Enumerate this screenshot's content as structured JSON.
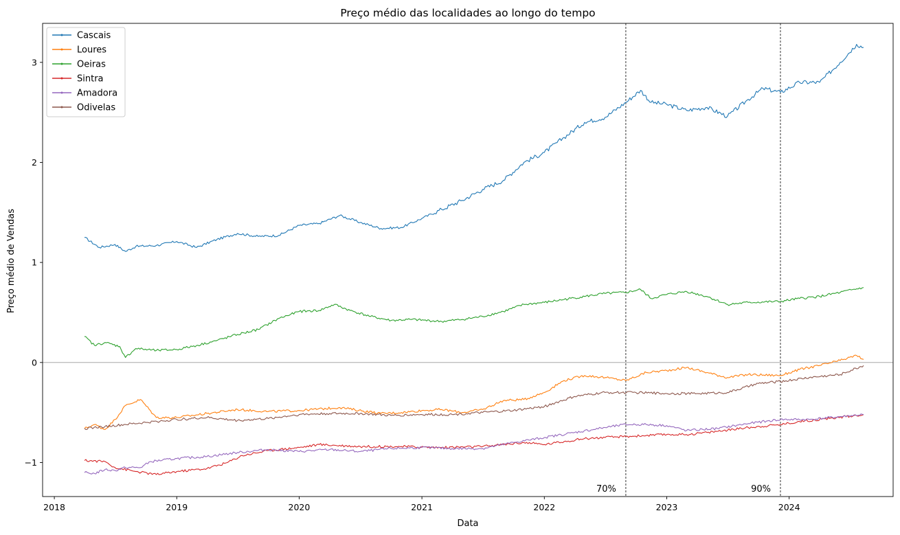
{
  "chart_data": {
    "type": "line",
    "title": "Preço médio das localidades ao longo do tempo",
    "xlabel": "Data",
    "ylabel": "Preço médio de Vendas",
    "xlim": [
      "2017-11-27",
      "2024-11-06"
    ],
    "ylim": [
      -1.34,
      3.39
    ],
    "x_ticks": [
      "2018",
      "2019",
      "2020",
      "2021",
      "2022",
      "2023",
      "2024"
    ],
    "y_ticks": [
      -1,
      0,
      1,
      2,
      3
    ],
    "grid": false,
    "legend_position": "upper-left",
    "reference_lines": {
      "horizontal": [
        {
          "y": 0,
          "color": "#999999"
        }
      ],
      "vertical": [
        {
          "x": "2022-09-01",
          "label": "70%"
        },
        {
          "x": "2023-12-06",
          "label": "90%"
        }
      ]
    },
    "series": [
      {
        "name": "Cascais",
        "color": "#1f77b4",
        "points": [
          [
            "2018-04-01",
            1.25
          ],
          [
            "2018-05-15",
            1.15
          ],
          [
            "2018-07-01",
            1.18
          ],
          [
            "2018-08-01",
            1.11
          ],
          [
            "2018-09-01",
            1.16
          ],
          [
            "2018-11-01",
            1.17
          ],
          [
            "2019-01-01",
            1.21
          ],
          [
            "2019-03-01",
            1.15
          ],
          [
            "2019-05-01",
            1.23
          ],
          [
            "2019-07-01",
            1.29
          ],
          [
            "2019-09-01",
            1.26
          ],
          [
            "2019-11-01",
            1.27
          ],
          [
            "2020-01-01",
            1.37
          ],
          [
            "2020-03-01",
            1.39
          ],
          [
            "2020-05-01",
            1.47
          ],
          [
            "2020-07-01",
            1.4
          ],
          [
            "2020-09-01",
            1.34
          ],
          [
            "2020-11-01",
            1.35
          ],
          [
            "2021-01-01",
            1.44
          ],
          [
            "2021-03-01",
            1.53
          ],
          [
            "2021-05-01",
            1.62
          ],
          [
            "2021-07-01",
            1.73
          ],
          [
            "2021-09-01",
            1.82
          ],
          [
            "2021-11-01",
            2.0
          ],
          [
            "2022-01-01",
            2.1
          ],
          [
            "2022-03-01",
            2.25
          ],
          [
            "2022-05-01",
            2.4
          ],
          [
            "2022-07-01",
            2.45
          ],
          [
            "2022-09-01",
            2.6
          ],
          [
            "2022-10-15",
            2.72
          ],
          [
            "2022-11-15",
            2.6
          ],
          [
            "2023-01-01",
            2.58
          ],
          [
            "2023-03-01",
            2.52
          ],
          [
            "2023-05-01",
            2.55
          ],
          [
            "2023-07-01",
            2.46
          ],
          [
            "2023-09-01",
            2.63
          ],
          [
            "2023-10-15",
            2.74
          ],
          [
            "2023-12-06",
            2.7
          ],
          [
            "2024-02-01",
            2.8
          ],
          [
            "2024-04-01",
            2.8
          ],
          [
            "2024-06-01",
            3.0
          ],
          [
            "2024-07-20",
            3.18
          ],
          [
            "2024-08-10",
            3.15
          ]
        ]
      },
      {
        "name": "Loures",
        "color": "#ff7f0e",
        "points": [
          [
            "2018-04-01",
            -0.66
          ],
          [
            "2018-05-01",
            -0.62
          ],
          [
            "2018-06-01",
            -0.67
          ],
          [
            "2018-07-01",
            -0.57
          ],
          [
            "2018-08-01",
            -0.43
          ],
          [
            "2018-09-15",
            -0.37
          ],
          [
            "2018-11-01",
            -0.55
          ],
          [
            "2019-01-01",
            -0.55
          ],
          [
            "2019-04-01",
            -0.51
          ],
          [
            "2019-07-01",
            -0.47
          ],
          [
            "2019-10-01",
            -0.49
          ],
          [
            "2020-01-01",
            -0.48
          ],
          [
            "2020-05-01",
            -0.45
          ],
          [
            "2020-09-01",
            -0.51
          ],
          [
            "2020-11-01",
            -0.5
          ],
          [
            "2021-01-01",
            -0.48
          ],
          [
            "2021-03-01",
            -0.47
          ],
          [
            "2021-05-01",
            -0.5
          ],
          [
            "2021-07-01",
            -0.47
          ],
          [
            "2021-09-01",
            -0.38
          ],
          [
            "2021-11-01",
            -0.37
          ],
          [
            "2022-01-01",
            -0.3
          ],
          [
            "2022-03-01",
            -0.18
          ],
          [
            "2022-05-01",
            -0.13
          ],
          [
            "2022-07-01",
            -0.15
          ],
          [
            "2022-09-01",
            -0.18
          ],
          [
            "2022-11-01",
            -0.1
          ],
          [
            "2023-01-01",
            -0.08
          ],
          [
            "2023-03-01",
            -0.05
          ],
          [
            "2023-05-01",
            -0.1
          ],
          [
            "2023-07-01",
            -0.15
          ],
          [
            "2023-09-01",
            -0.12
          ],
          [
            "2023-12-06",
            -0.13
          ],
          [
            "2024-02-01",
            -0.07
          ],
          [
            "2024-04-01",
            -0.03
          ],
          [
            "2024-06-01",
            0.02
          ],
          [
            "2024-07-20",
            0.07
          ],
          [
            "2024-08-10",
            0.03
          ]
        ]
      },
      {
        "name": "Oeiras",
        "color": "#2ca02c",
        "points": [
          [
            "2018-04-01",
            0.26
          ],
          [
            "2018-05-01",
            0.17
          ],
          [
            "2018-06-01",
            0.2
          ],
          [
            "2018-07-15",
            0.16
          ],
          [
            "2018-08-01",
            0.05
          ],
          [
            "2018-09-01",
            0.14
          ],
          [
            "2018-11-01",
            0.12
          ],
          [
            "2019-01-01",
            0.13
          ],
          [
            "2019-03-01",
            0.17
          ],
          [
            "2019-05-01",
            0.22
          ],
          [
            "2019-07-01",
            0.28
          ],
          [
            "2019-09-01",
            0.33
          ],
          [
            "2019-11-01",
            0.44
          ],
          [
            "2020-01-01",
            0.51
          ],
          [
            "2020-03-01",
            0.52
          ],
          [
            "2020-04-15",
            0.58
          ],
          [
            "2020-06-01",
            0.52
          ],
          [
            "2020-08-01",
            0.46
          ],
          [
            "2020-10-01",
            0.42
          ],
          [
            "2020-12-01",
            0.43
          ],
          [
            "2021-03-01",
            0.41
          ],
          [
            "2021-05-01",
            0.43
          ],
          [
            "2021-07-01",
            0.46
          ],
          [
            "2021-09-01",
            0.51
          ],
          [
            "2021-11-01",
            0.58
          ],
          [
            "2022-01-01",
            0.6
          ],
          [
            "2022-03-01",
            0.63
          ],
          [
            "2022-05-01",
            0.66
          ],
          [
            "2022-07-01",
            0.69
          ],
          [
            "2022-09-01",
            0.7
          ],
          [
            "2022-10-15",
            0.73
          ],
          [
            "2022-11-15",
            0.64
          ],
          [
            "2023-01-01",
            0.68
          ],
          [
            "2023-03-01",
            0.71
          ],
          [
            "2023-05-01",
            0.66
          ],
          [
            "2023-07-01",
            0.58
          ],
          [
            "2023-09-01",
            0.6
          ],
          [
            "2023-12-06",
            0.61
          ],
          [
            "2024-02-01",
            0.64
          ],
          [
            "2024-04-01",
            0.66
          ],
          [
            "2024-06-01",
            0.7
          ],
          [
            "2024-08-10",
            0.75
          ]
        ]
      },
      {
        "name": "Sintra",
        "color": "#d62728",
        "points": [
          [
            "2018-04-01",
            -0.98
          ],
          [
            "2018-06-01",
            -0.99
          ],
          [
            "2018-07-01",
            -1.05
          ],
          [
            "2018-09-01",
            -1.09
          ],
          [
            "2018-11-01",
            -1.12
          ],
          [
            "2019-01-01",
            -1.09
          ],
          [
            "2019-04-01",
            -1.06
          ],
          [
            "2019-06-01",
            -1.0
          ],
          [
            "2019-07-15",
            -0.93
          ],
          [
            "2019-10-01",
            -0.88
          ],
          [
            "2020-01-01",
            -0.85
          ],
          [
            "2020-03-01",
            -0.82
          ],
          [
            "2020-07-01",
            -0.84
          ],
          [
            "2020-11-01",
            -0.84
          ],
          [
            "2021-03-01",
            -0.85
          ],
          [
            "2021-07-01",
            -0.84
          ],
          [
            "2021-11-01",
            -0.8
          ],
          [
            "2022-01-01",
            -0.82
          ],
          [
            "2022-03-01",
            -0.79
          ],
          [
            "2022-05-01",
            -0.76
          ],
          [
            "2022-07-01",
            -0.75
          ],
          [
            "2022-09-01",
            -0.74
          ],
          [
            "2022-11-01",
            -0.73
          ],
          [
            "2023-01-01",
            -0.72
          ],
          [
            "2023-03-01",
            -0.72
          ],
          [
            "2023-05-01",
            -0.7
          ],
          [
            "2023-09-01",
            -0.65
          ],
          [
            "2023-12-06",
            -0.62
          ],
          [
            "2024-02-01",
            -0.59
          ],
          [
            "2024-05-01",
            -0.56
          ],
          [
            "2024-08-10",
            -0.52
          ]
        ]
      },
      {
        "name": "Amadora",
        "color": "#9467bd",
        "points": [
          [
            "2018-04-01",
            -1.1
          ],
          [
            "2018-05-01",
            -1.11
          ],
          [
            "2018-06-01",
            -1.07
          ],
          [
            "2018-07-01",
            -1.08
          ],
          [
            "2018-08-01",
            -1.05
          ],
          [
            "2018-09-15",
            -1.05
          ],
          [
            "2018-10-15",
            -0.99
          ],
          [
            "2019-01-01",
            -0.96
          ],
          [
            "2019-04-01",
            -0.94
          ],
          [
            "2019-07-01",
            -0.9
          ],
          [
            "2019-10-01",
            -0.87
          ],
          [
            "2020-01-01",
            -0.89
          ],
          [
            "2020-04-01",
            -0.87
          ],
          [
            "2020-07-01",
            -0.89
          ],
          [
            "2020-10-01",
            -0.86
          ],
          [
            "2021-01-01",
            -0.85
          ],
          [
            "2021-04-01",
            -0.86
          ],
          [
            "2021-07-01",
            -0.86
          ],
          [
            "2021-10-01",
            -0.8
          ],
          [
            "2022-01-01",
            -0.75
          ],
          [
            "2022-04-01",
            -0.7
          ],
          [
            "2022-07-01",
            -0.65
          ],
          [
            "2022-09-01",
            -0.62
          ],
          [
            "2022-11-01",
            -0.62
          ],
          [
            "2023-01-01",
            -0.63
          ],
          [
            "2023-03-01",
            -0.68
          ],
          [
            "2023-06-01",
            -0.66
          ],
          [
            "2023-09-01",
            -0.61
          ],
          [
            "2023-12-06",
            -0.57
          ],
          [
            "2024-03-01",
            -0.57
          ],
          [
            "2024-08-10",
            -0.52
          ]
        ]
      },
      {
        "name": "Odivelas",
        "color": "#8c564b",
        "points": [
          [
            "2018-04-01",
            -0.66
          ],
          [
            "2018-06-01",
            -0.64
          ],
          [
            "2018-08-01",
            -0.62
          ],
          [
            "2018-10-01",
            -0.6
          ],
          [
            "2019-01-01",
            -0.57
          ],
          [
            "2019-04-01",
            -0.55
          ],
          [
            "2019-07-01",
            -0.58
          ],
          [
            "2019-10-01",
            -0.56
          ],
          [
            "2020-01-01",
            -0.52
          ],
          [
            "2020-04-01",
            -0.51
          ],
          [
            "2020-07-01",
            -0.51
          ],
          [
            "2020-10-01",
            -0.53
          ],
          [
            "2021-01-01",
            -0.52
          ],
          [
            "2021-04-01",
            -0.52
          ],
          [
            "2021-07-01",
            -0.5
          ],
          [
            "2021-10-01",
            -0.48
          ],
          [
            "2022-01-01",
            -0.44
          ],
          [
            "2022-04-01",
            -0.34
          ],
          [
            "2022-07-01",
            -0.3
          ],
          [
            "2022-10-01",
            -0.3
          ],
          [
            "2023-01-01",
            -0.31
          ],
          [
            "2023-04-01",
            -0.31
          ],
          [
            "2023-07-01",
            -0.3
          ],
          [
            "2023-10-01",
            -0.21
          ],
          [
            "2023-12-06",
            -0.19
          ],
          [
            "2024-03-01",
            -0.15
          ],
          [
            "2024-06-01",
            -0.12
          ],
          [
            "2024-08-10",
            -0.03
          ]
        ]
      }
    ]
  }
}
